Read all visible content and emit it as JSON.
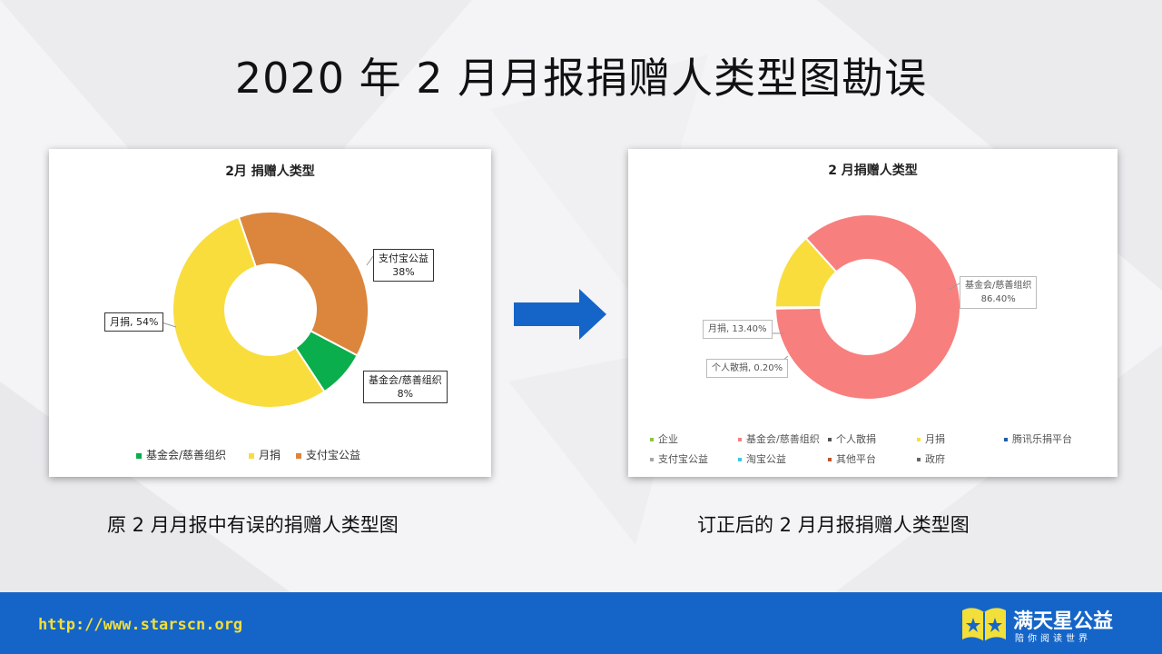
{
  "slide": {
    "title": "2020 年 2 月月报捐赠人类型图勘误",
    "caption_left": "原 2 月月报中有误的捐赠人类型图",
    "caption_right": "订正后的 2 月月报捐赠人类型图"
  },
  "footer": {
    "url": "http://www.starscn.org",
    "brand_name": "满天星公益",
    "brand_slogan": "陪你阅读世界",
    "background_color": "#1565c8",
    "url_color": "#f3df3a"
  },
  "chart_data": [
    {
      "type": "donut",
      "title": "2月 捐赠人类型",
      "series": [
        {
          "name": "基金会/慈善组织",
          "value": 8,
          "label": "8%",
          "color": "#0aae4c"
        },
        {
          "name": "月捐",
          "value": 54,
          "label": "54%",
          "color": "#f9dd3d"
        },
        {
          "name": "支付宝公益",
          "value": 38,
          "label": "38%",
          "color": "#db853d"
        }
      ],
      "legend": [
        "基金会/慈善组织",
        "月捐",
        "支付宝公益"
      ],
      "legend_position": "bottom"
    },
    {
      "type": "donut",
      "title": "2 月捐赠人类型",
      "series": [
        {
          "name": "基金会/慈善组织",
          "value": 86.4,
          "label": "86.40%",
          "color": "#f77f7e"
        },
        {
          "name": "个人散捐",
          "value": 0.2,
          "label": "0.20%",
          "color": "#555555"
        },
        {
          "name": "月捐",
          "value": 13.4,
          "label": "13.40%",
          "color": "#f9dd3d"
        }
      ],
      "legend": [
        {
          "name": "企业",
          "color": "#8dc63f"
        },
        {
          "name": "基金会/慈善组织",
          "color": "#f77f7e"
        },
        {
          "name": "个人散捐",
          "color": "#555555"
        },
        {
          "name": "月捐",
          "color": "#f9dd3d"
        },
        {
          "name": "腾讯乐捐平台",
          "color": "#1f5fa8"
        },
        {
          "name": "支付宝公益",
          "color": "#a6a6a6"
        },
        {
          "name": "淘宝公益",
          "color": "#3cc9e0"
        },
        {
          "name": "其他平台",
          "color": "#c0562c"
        },
        {
          "name": "政府",
          "color": "#666666"
        }
      ],
      "legend_position": "bottom"
    }
  ]
}
